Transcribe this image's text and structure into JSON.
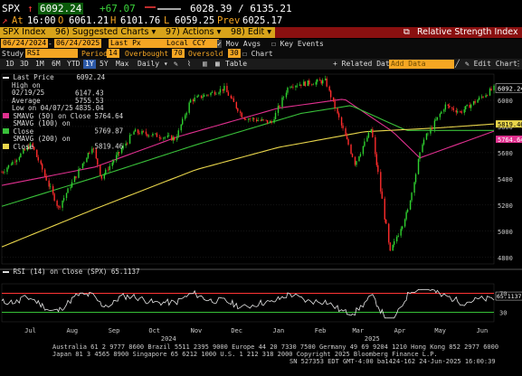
{
  "header": {
    "ticker": "SPX",
    "arrow": "↑",
    "last": "6092.24",
    "change": "+67.07",
    "range": "6028.39 / 6135.21",
    "at_label": "At",
    "time": "16:00",
    "open_label": "O",
    "open": "6061.21",
    "high_label": "H",
    "high": "6101.76",
    "low_label": "L",
    "low": "6059.25",
    "prev_label": "Prev",
    "prev": "6025.17"
  },
  "menubar": {
    "security": "SPX Index",
    "suggested": "96) Suggested Charts",
    "actions": "97) Actions",
    "edit": "98) Edit",
    "title": "Relative Strength Index"
  },
  "params": {
    "date_from": "06/24/2024",
    "date_to": "06/24/2025",
    "price_field": "Last Px",
    "currency": "Local CCY",
    "mov_avgs": "Mov Avgs",
    "key_events": "Key Events"
  },
  "study": {
    "study_label": "Study",
    "study_value": "RSI",
    "period_label": "Period",
    "period": "14",
    "overbought_label": "Overbought",
    "overbought": "70",
    "oversold_label": "Oversold",
    "oversold": "30",
    "chart_label": "Chart"
  },
  "toolbar": {
    "tabs": [
      "1D",
      "3D",
      "1M",
      "6M",
      "YTD",
      "1Y",
      "5Y",
      "Max"
    ],
    "selected_tab": "1Y",
    "frequency": "Daily",
    "table": "Table",
    "related": "Related Data",
    "add_data": "Add Data",
    "edit_chart": "Edit Chart"
  },
  "legend": {
    "last_price": {
      "label": "Last Price",
      "value": "6092.24"
    },
    "high": {
      "label": "High on 02/19/25",
      "value": "6147.43"
    },
    "average": {
      "label": "Average",
      "value": "5755.53"
    },
    "low": {
      "label": "Low on 04/07/25",
      "value": "4835.04"
    },
    "smavg50": {
      "label": "SMAVG (50)  on Close",
      "value": "5764.64"
    },
    "smavg100": {
      "label": "SMAVG (100) on Close",
      "value": "5769.87"
    },
    "smavg200": {
      "label": "SMAVG (200) on Close",
      "value": "5819.46"
    }
  },
  "rsi_legend": {
    "label": "RSI (14) on Close (SPX)",
    "value": "65.1137"
  },
  "colors": {
    "price": "#ffffff",
    "up": "#2fd12f",
    "down": "#ff2c2c",
    "ma50": "#e0308f",
    "ma100": "#39c03a",
    "ma200": "#e8d54b",
    "rsi": "#e6e6e6",
    "rsi_over": "#ff3434",
    "rsi_under": "#36c036",
    "amber": "#f5a623"
  },
  "footer": {
    "line1": "Australia 61 2 9777 8600 Brazil 5511 2395 9000 Europe 44 20 7330 7500 Germany 49 69 9204 1210 Hong Kong 852 2977 6000",
    "line2": "Japan 81 3 4565 8900        Singapore 65 6212 1000        U.S. 1 212 318 2000        Copyright 2025 Bloomberg Finance L.P.",
    "line3": "SN 527353 EDT  GMT-4:00 ba1424-162 24-Jun-2025 16:00:39"
  },
  "chart_data": {
    "type": "line",
    "title": "Relative Strength Index",
    "x_tick_labels": [
      "Jul",
      "Aug",
      "Sep",
      "Oct",
      "Nov",
      "Dec",
      "Jan",
      "Feb",
      "Mar",
      "Apr",
      "May",
      "Jun"
    ],
    "year_labels": [
      "2024",
      "2025"
    ],
    "y_ticks": [
      4800,
      5000,
      5200,
      5400,
      5600,
      5800,
      6000
    ],
    "ylim": [
      4750,
      6200
    ],
    "rsi_ylim": [
      10,
      90
    ],
    "rsi_levels": [
      70,
      30
    ],
    "rsi_last": 65.1137,
    "series": [
      {
        "name": "Last Price",
        "x": [
          "2024-06-24",
          "2024-07-16",
          "2024-08-05",
          "2024-08-30",
          "2024-09-06",
          "2024-09-30",
          "2024-10-31",
          "2024-11-11",
          "2024-12-06",
          "2024-12-20",
          "2025-01-10",
          "2025-01-23",
          "2025-02-19",
          "2025-03-13",
          "2025-03-25",
          "2025-04-08",
          "2025-04-21",
          "2025-05-02",
          "2025-05-19",
          "2025-05-30",
          "2025-06-24"
        ],
        "values": [
          5450,
          5665,
          5180,
          5650,
          5410,
          5760,
          5705,
          6000,
          6090,
          5870,
          5830,
          6115,
          6147,
          5520,
          5780,
          4835,
          5155,
          5680,
          5960,
          5910,
          6092
        ]
      },
      {
        "name": "SMAVG (50) on Close",
        "x": [
          "2024-06-24",
          "2024-09-01",
          "2024-11-01",
          "2025-01-15",
          "2025-03-05",
          "2025-04-10",
          "2025-04-30",
          "2025-06-24"
        ],
        "values": [
          5350,
          5490,
          5720,
          5940,
          6010,
          5760,
          5560,
          5764
        ]
      },
      {
        "name": "SMAVG (100) on Close",
        "x": [
          "2024-06-24",
          "2024-09-01",
          "2024-11-15",
          "2025-02-01",
          "2025-03-10",
          "2025-04-20",
          "2025-06-24"
        ],
        "values": [
          5190,
          5410,
          5660,
          5900,
          5960,
          5770,
          5770
        ]
      },
      {
        "name": "SMAVG (200) on Close",
        "x": [
          "2024-06-24",
          "2024-09-01",
          "2024-11-15",
          "2025-01-15",
          "2025-03-20",
          "2025-05-15",
          "2025-06-24"
        ],
        "values": [
          4880,
          5170,
          5470,
          5640,
          5760,
          5790,
          5819
        ]
      }
    ]
  }
}
